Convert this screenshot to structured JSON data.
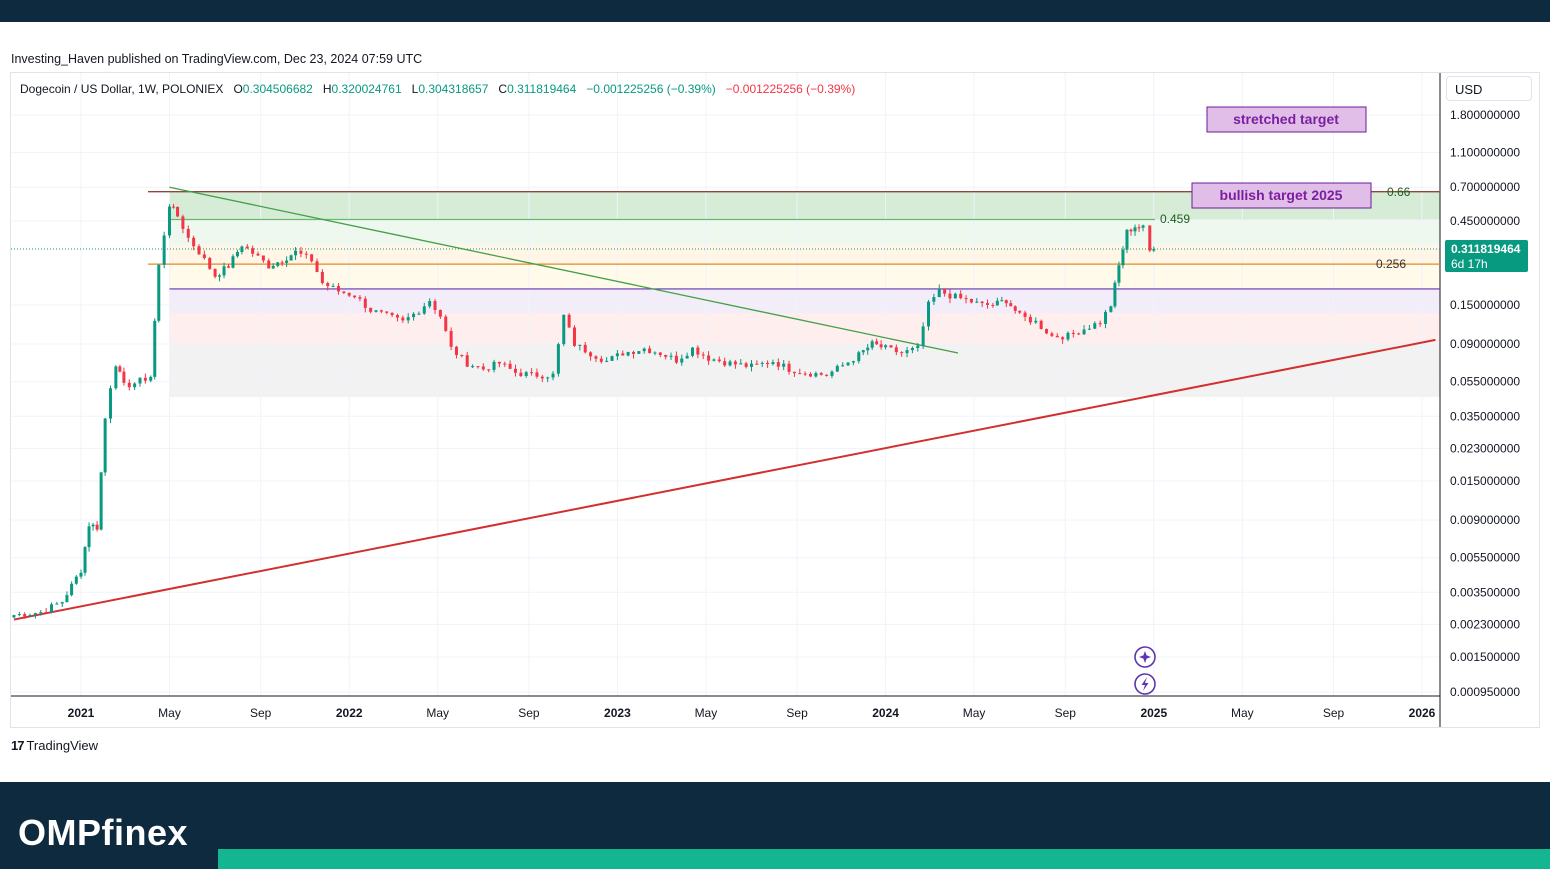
{
  "publish_line": "Investing_Haven published on TradingView.com, Dec 23, 2024 07:59 UTC",
  "ohlc": {
    "symbol": "Dogecoin / US Dollar, 1W, POLONIEX",
    "o_label": "O",
    "o": "0.304506682",
    "h_label": "H",
    "h": "0.320024761",
    "l_label": "L",
    "l": "0.304318657",
    "c_label": "C",
    "c": "0.311819464",
    "chg1": "−0.001225256 (−0.39%)",
    "chg2": "−0.001225256 (−0.39%)"
  },
  "currency": "USD",
  "price_tag": {
    "price": "0.311819464",
    "countdown": "6d 17h"
  },
  "annotations": {
    "stretched": "stretched target",
    "bullish": "bullish target 2025"
  },
  "fib_labels": {
    "f066": "0.66",
    "f0459": "0.459",
    "f0256": "0.256"
  },
  "brand": {
    "tv": "TradingView",
    "omp": "OMPfinex"
  },
  "colors": {
    "bull": "#089981",
    "bear": "#f23645",
    "trend": "#d32f2f",
    "down_trend": "#43a047",
    "annot_fill": "#e1bee7",
    "annot_text": "#7b1fa2",
    "footer": "#0e2a3f",
    "footer_accent": "#14b591"
  },
  "chart_data": {
    "type": "candlestick",
    "title": "Dogecoin / US Dollar, 1W, POLONIEX",
    "scale": "log",
    "y_ticks": [
      "1.800000000",
      "1.100000000",
      "0.700000000",
      "0.450000000",
      "0.150000000",
      "0.090000000",
      "0.055000000",
      "0.035000000",
      "0.023000000",
      "0.015000000",
      "0.009000000",
      "0.005500000",
      "0.003500000",
      "0.002300000",
      "0.001500000",
      "0.000950000"
    ],
    "x_ticks": [
      {
        "label": "2021",
        "t": 2021.0,
        "bold": true
      },
      {
        "label": "May",
        "t": 2021.33
      },
      {
        "label": "Sep",
        "t": 2021.67
      },
      {
        "label": "2022",
        "t": 2022.0,
        "bold": true
      },
      {
        "label": "May",
        "t": 2022.33
      },
      {
        "label": "Sep",
        "t": 2022.67
      },
      {
        "label": "2023",
        "t": 2023.0,
        "bold": true
      },
      {
        "label": "May",
        "t": 2023.33
      },
      {
        "label": "Sep",
        "t": 2023.67
      },
      {
        "label": "2024",
        "t": 2024.0,
        "bold": true
      },
      {
        "label": "May",
        "t": 2024.33
      },
      {
        "label": "Sep",
        "t": 2024.67
      },
      {
        "label": "2025",
        "t": 2025.0,
        "bold": true
      },
      {
        "label": "May",
        "t": 2025.33
      },
      {
        "label": "Sep",
        "t": 2025.67
      },
      {
        "label": "2026",
        "t": 2026.0,
        "bold": true
      }
    ],
    "anchors": [
      [
        2020.75,
        0.0026
      ],
      [
        2020.85,
        0.0027
      ],
      [
        2020.93,
        0.0031
      ],
      [
        2021.0,
        0.0047
      ],
      [
        2021.03,
        0.0085
      ],
      [
        2021.06,
        0.0082
      ],
      [
        2021.09,
        0.034
      ],
      [
        2021.11,
        0.052
      ],
      [
        2021.13,
        0.07
      ],
      [
        2021.16,
        0.052
      ],
      [
        2021.2,
        0.054
      ],
      [
        2021.26,
        0.059
      ],
      [
        2021.29,
        0.25
      ],
      [
        2021.31,
        0.38
      ],
      [
        2021.33,
        0.56
      ],
      [
        2021.36,
        0.48
      ],
      [
        2021.4,
        0.36
      ],
      [
        2021.44,
        0.3
      ],
      [
        2021.5,
        0.22
      ],
      [
        2021.55,
        0.25
      ],
      [
        2021.6,
        0.33
      ],
      [
        2021.66,
        0.28
      ],
      [
        2021.7,
        0.25
      ],
      [
        2021.75,
        0.27
      ],
      [
        2021.8,
        0.3
      ],
      [
        2021.86,
        0.27
      ],
      [
        2021.9,
        0.2
      ],
      [
        2021.96,
        0.18
      ],
      [
        2022.02,
        0.17
      ],
      [
        2022.08,
        0.14
      ],
      [
        2022.14,
        0.13
      ],
      [
        2022.2,
        0.12
      ],
      [
        2022.26,
        0.14
      ],
      [
        2022.3,
        0.16
      ],
      [
        2022.34,
        0.13
      ],
      [
        2022.38,
        0.085
      ],
      [
        2022.44,
        0.07
      ],
      [
        2022.5,
        0.065
      ],
      [
        2022.56,
        0.07
      ],
      [
        2022.62,
        0.062
      ],
      [
        2022.68,
        0.06
      ],
      [
        2022.76,
        0.06
      ],
      [
        2022.8,
        0.13
      ],
      [
        2022.84,
        0.09
      ],
      [
        2022.9,
        0.08
      ],
      [
        2022.96,
        0.072
      ],
      [
        2023.02,
        0.08
      ],
      [
        2023.1,
        0.085
      ],
      [
        2023.16,
        0.08
      ],
      [
        2023.22,
        0.073
      ],
      [
        2023.28,
        0.085
      ],
      [
        2023.34,
        0.075
      ],
      [
        2023.42,
        0.07
      ],
      [
        2023.5,
        0.067
      ],
      [
        2023.58,
        0.072
      ],
      [
        2023.64,
        0.065
      ],
      [
        2023.7,
        0.062
      ],
      [
        2023.78,
        0.06
      ],
      [
        2023.84,
        0.068
      ],
      [
        2023.9,
        0.078
      ],
      [
        2023.95,
        0.09
      ],
      [
        2024.0,
        0.085
      ],
      [
        2024.06,
        0.08
      ],
      [
        2024.12,
        0.085
      ],
      [
        2024.16,
        0.15
      ],
      [
        2024.2,
        0.18
      ],
      [
        2024.24,
        0.17
      ],
      [
        2024.3,
        0.16
      ],
      [
        2024.36,
        0.15
      ],
      [
        2024.4,
        0.15
      ],
      [
        2024.45,
        0.16
      ],
      [
        2024.5,
        0.13
      ],
      [
        2024.56,
        0.12
      ],
      [
        2024.62,
        0.1
      ],
      [
        2024.68,
        0.1
      ],
      [
        2024.74,
        0.11
      ],
      [
        2024.8,
        0.12
      ],
      [
        2024.84,
        0.15
      ],
      [
        2024.87,
        0.25
      ],
      [
        2024.9,
        0.39
      ],
      [
        2024.93,
        0.42
      ],
      [
        2024.96,
        0.41
      ],
      [
        2024.985,
        0.304
      ],
      [
        2025.0,
        0.3118
      ]
    ],
    "fib_levels": [
      {
        "label": "0.66",
        "value": 0.66
      },
      {
        "label": "0.459",
        "value": 0.459
      },
      {
        "label": "0.256",
        "value": 0.256
      }
    ],
    "zones": [
      {
        "from": 0.459,
        "to": 0.66,
        "color": "#c8e6c9"
      },
      {
        "from": 0.33,
        "to": 0.459,
        "color": "#e8f5e9"
      },
      {
        "from": 0.256,
        "to": 0.33,
        "color": "#fff3e0"
      },
      {
        "from": 0.185,
        "to": 0.256,
        "color": "#fff8e1"
      },
      {
        "from": 0.135,
        "to": 0.185,
        "color": "#ede7f6"
      },
      {
        "from": 0.09,
        "to": 0.135,
        "color": "#fde8e8"
      },
      {
        "from": 0.045,
        "to": 0.09,
        "color": "#eeeeee"
      }
    ],
    "trendline_support": {
      "from": [
        2020.75,
        0.00245
      ],
      "to": [
        2026.05,
        0.095
      ]
    },
    "trendline_down": {
      "from": [
        2021.33,
        0.7
      ],
      "to": [
        2024.27,
        0.08
      ]
    },
    "last_price": 0.311819464
  }
}
